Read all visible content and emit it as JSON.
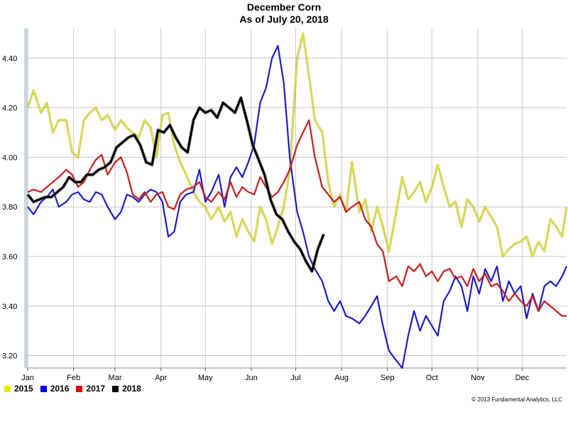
{
  "chart_data": {
    "type": "line",
    "title": "December Corn",
    "subtitle": "As of July 20, 2018",
    "xlabel": "",
    "ylabel": "",
    "x_tick_labels": [
      "Jan",
      "Feb",
      "Mar",
      "Apr",
      "May",
      "Jun",
      "Jul",
      "Aug",
      "Sep",
      "Oct",
      "Nov",
      "Dec"
    ],
    "y_ticks": [
      3.2,
      3.4,
      3.6,
      3.8,
      4.0,
      4.2,
      4.4
    ],
    "y_tick_labels": [
      "3.20",
      "3.40",
      "3.60",
      "3.80",
      "4.00",
      "4.20",
      "4.40"
    ],
    "ylim": [
      3.15,
      4.52
    ],
    "xlim": [
      1,
      365
    ],
    "grid": true,
    "legend_position": "bottom-left",
    "x_unit": "day of year",
    "series": [
      {
        "name": "2015",
        "color": "#e8e800",
        "x": [
          1,
          5,
          10,
          14,
          18,
          22,
          27,
          31,
          35,
          39,
          43,
          47,
          51,
          55,
          60,
          64,
          68,
          72,
          76,
          80,
          84,
          88,
          92,
          96,
          100,
          104,
          108,
          113,
          117,
          121,
          125,
          130,
          134,
          138,
          142,
          146,
          150,
          154,
          158,
          162,
          166,
          170,
          174,
          178,
          183,
          187,
          191,
          195,
          200,
          204,
          208,
          212,
          216,
          220,
          225,
          229,
          233,
          237,
          241,
          245,
          250,
          254,
          258,
          262,
          266,
          270,
          274,
          278,
          282,
          286,
          290,
          294,
          298,
          302,
          306,
          310,
          314,
          318,
          322,
          326,
          330,
          334,
          338,
          342,
          346,
          350,
          354,
          358,
          362,
          365
        ],
        "y": [
          4.2,
          4.27,
          4.18,
          4.22,
          4.1,
          4.15,
          4.15,
          4.02,
          4.0,
          4.15,
          4.18,
          4.2,
          4.15,
          4.17,
          4.11,
          4.15,
          4.12,
          4.1,
          4.08,
          4.15,
          4.12,
          4.0,
          4.17,
          4.18,
          4.05,
          3.98,
          3.93,
          3.86,
          3.82,
          3.8,
          3.75,
          3.8,
          3.74,
          3.78,
          3.68,
          3.75,
          3.7,
          3.66,
          3.8,
          3.75,
          3.65,
          3.72,
          3.8,
          3.95,
          4.4,
          4.5,
          4.33,
          4.15,
          4.1,
          3.9,
          3.8,
          3.85,
          3.78,
          3.98,
          3.78,
          3.83,
          3.7,
          3.8,
          3.72,
          3.62,
          3.78,
          3.92,
          3.83,
          3.86,
          3.9,
          3.82,
          3.88,
          3.97,
          3.88,
          3.8,
          3.82,
          3.72,
          3.83,
          3.8,
          3.74,
          3.8,
          3.76,
          3.72,
          3.6,
          3.63,
          3.65,
          3.66,
          3.68,
          3.6,
          3.66,
          3.62,
          3.75,
          3.72,
          3.68,
          3.8
        ]
      },
      {
        "name": "2016",
        "color": "#0000e0",
        "x": [
          1,
          5,
          10,
          14,
          18,
          22,
          27,
          31,
          35,
          39,
          43,
          47,
          51,
          55,
          60,
          64,
          68,
          72,
          76,
          80,
          84,
          88,
          92,
          96,
          100,
          104,
          108,
          113,
          117,
          121,
          125,
          130,
          134,
          138,
          142,
          146,
          150,
          154,
          158,
          162,
          166,
          170,
          174,
          178,
          183,
          187,
          191,
          195,
          200,
          204,
          208,
          212,
          216,
          220,
          225,
          229,
          233,
          237,
          241,
          245,
          250,
          254,
          258,
          262,
          266,
          270,
          274,
          278,
          282,
          286,
          290,
          294,
          298,
          302,
          306,
          310,
          314,
          318,
          322,
          326,
          330,
          334,
          338,
          342,
          346,
          350,
          354,
          358,
          362,
          365
        ],
        "y": [
          3.8,
          3.77,
          3.82,
          3.84,
          3.87,
          3.8,
          3.82,
          3.85,
          3.86,
          3.83,
          3.82,
          3.86,
          3.85,
          3.8,
          3.75,
          3.78,
          3.85,
          3.84,
          3.82,
          3.85,
          3.87,
          3.86,
          3.82,
          3.68,
          3.7,
          3.82,
          3.85,
          3.86,
          3.95,
          3.82,
          3.86,
          3.93,
          3.8,
          3.92,
          3.96,
          3.92,
          3.98,
          4.05,
          4.22,
          4.28,
          4.4,
          4.45,
          4.3,
          4.0,
          3.78,
          3.7,
          3.6,
          3.55,
          3.5,
          3.42,
          3.38,
          3.42,
          3.36,
          3.35,
          3.33,
          3.36,
          3.4,
          3.44,
          3.32,
          3.22,
          3.18,
          3.15,
          3.28,
          3.38,
          3.3,
          3.36,
          3.32,
          3.28,
          3.42,
          3.46,
          3.52,
          3.48,
          3.38,
          3.52,
          3.45,
          3.55,
          3.5,
          3.56,
          3.42,
          3.5,
          3.45,
          3.48,
          3.35,
          3.45,
          3.38,
          3.48,
          3.5,
          3.48,
          3.52,
          3.56
        ]
      },
      {
        "name": "2017",
        "color": "#dd0000",
        "x": [
          1,
          5,
          10,
          14,
          18,
          22,
          27,
          31,
          35,
          39,
          43,
          47,
          51,
          55,
          60,
          64,
          68,
          72,
          76,
          80,
          84,
          88,
          92,
          96,
          100,
          104,
          108,
          113,
          117,
          121,
          125,
          130,
          134,
          138,
          142,
          146,
          150,
          154,
          158,
          162,
          166,
          170,
          174,
          178,
          183,
          187,
          191,
          195,
          200,
          204,
          208,
          212,
          216,
          220,
          225,
          229,
          233,
          237,
          241,
          245,
          250,
          254,
          258,
          262,
          266,
          270,
          274,
          278,
          282,
          286,
          290,
          294,
          298,
          302,
          306,
          310,
          314,
          318,
          322,
          326,
          330,
          334,
          338,
          342,
          346,
          350,
          354,
          358,
          362,
          365
        ],
        "y": [
          3.86,
          3.87,
          3.86,
          3.88,
          3.9,
          3.92,
          3.95,
          3.93,
          3.88,
          3.9,
          3.95,
          3.99,
          4.01,
          3.93,
          3.98,
          4.0,
          3.94,
          3.85,
          3.83,
          3.86,
          3.82,
          3.85,
          3.86,
          3.8,
          3.79,
          3.85,
          3.87,
          3.88,
          3.9,
          3.84,
          3.82,
          3.86,
          3.83,
          3.9,
          3.84,
          3.88,
          3.86,
          3.85,
          3.92,
          3.88,
          3.84,
          3.86,
          3.9,
          3.95,
          4.05,
          4.1,
          4.15,
          4.0,
          3.88,
          3.85,
          3.82,
          3.84,
          3.78,
          3.8,
          3.82,
          3.75,
          3.72,
          3.65,
          3.62,
          3.5,
          3.52,
          3.48,
          3.56,
          3.54,
          3.57,
          3.52,
          3.54,
          3.5,
          3.54,
          3.55,
          3.51,
          3.52,
          3.48,
          3.55,
          3.5,
          3.53,
          3.48,
          3.49,
          3.46,
          3.42,
          3.45,
          3.42,
          3.4,
          3.44,
          3.38,
          3.42,
          3.4,
          3.38,
          3.36,
          3.36
        ]
      },
      {
        "name": "2018",
        "color": "#000000",
        "x": [
          1,
          5,
          9,
          13,
          17,
          21,
          25,
          29,
          33,
          37,
          41,
          45,
          49,
          53,
          57,
          61,
          65,
          69,
          73,
          77,
          81,
          85,
          89,
          93,
          97,
          101,
          105,
          109,
          113,
          117,
          121,
          125,
          129,
          133,
          137,
          141,
          145,
          149,
          153,
          157,
          161,
          165,
          169,
          173,
          177,
          181,
          185,
          189,
          193,
          197,
          201
        ],
        "y": [
          3.85,
          3.82,
          3.83,
          3.84,
          3.84,
          3.86,
          3.88,
          3.92,
          3.9,
          3.9,
          3.93,
          3.93,
          3.95,
          3.96,
          3.98,
          4.04,
          4.06,
          4.08,
          4.09,
          4.05,
          3.98,
          3.97,
          4.11,
          4.1,
          4.13,
          4.08,
          4.04,
          4.02,
          4.15,
          4.2,
          4.18,
          4.19,
          4.16,
          4.22,
          4.2,
          4.18,
          4.24,
          4.15,
          4.05,
          3.99,
          3.93,
          3.83,
          3.77,
          3.75,
          3.7,
          3.66,
          3.63,
          3.58,
          3.54,
          3.63,
          3.69
        ]
      }
    ]
  },
  "legend": [
    {
      "label": "2015",
      "color": "#e8e800"
    },
    {
      "label": "2016",
      "color": "#0000e0"
    },
    {
      "label": "2017",
      "color": "#dd0000"
    },
    {
      "label": "2018",
      "color": "#000000"
    }
  ],
  "copyright": "© 2013 Fundamental Analytics, LLC"
}
